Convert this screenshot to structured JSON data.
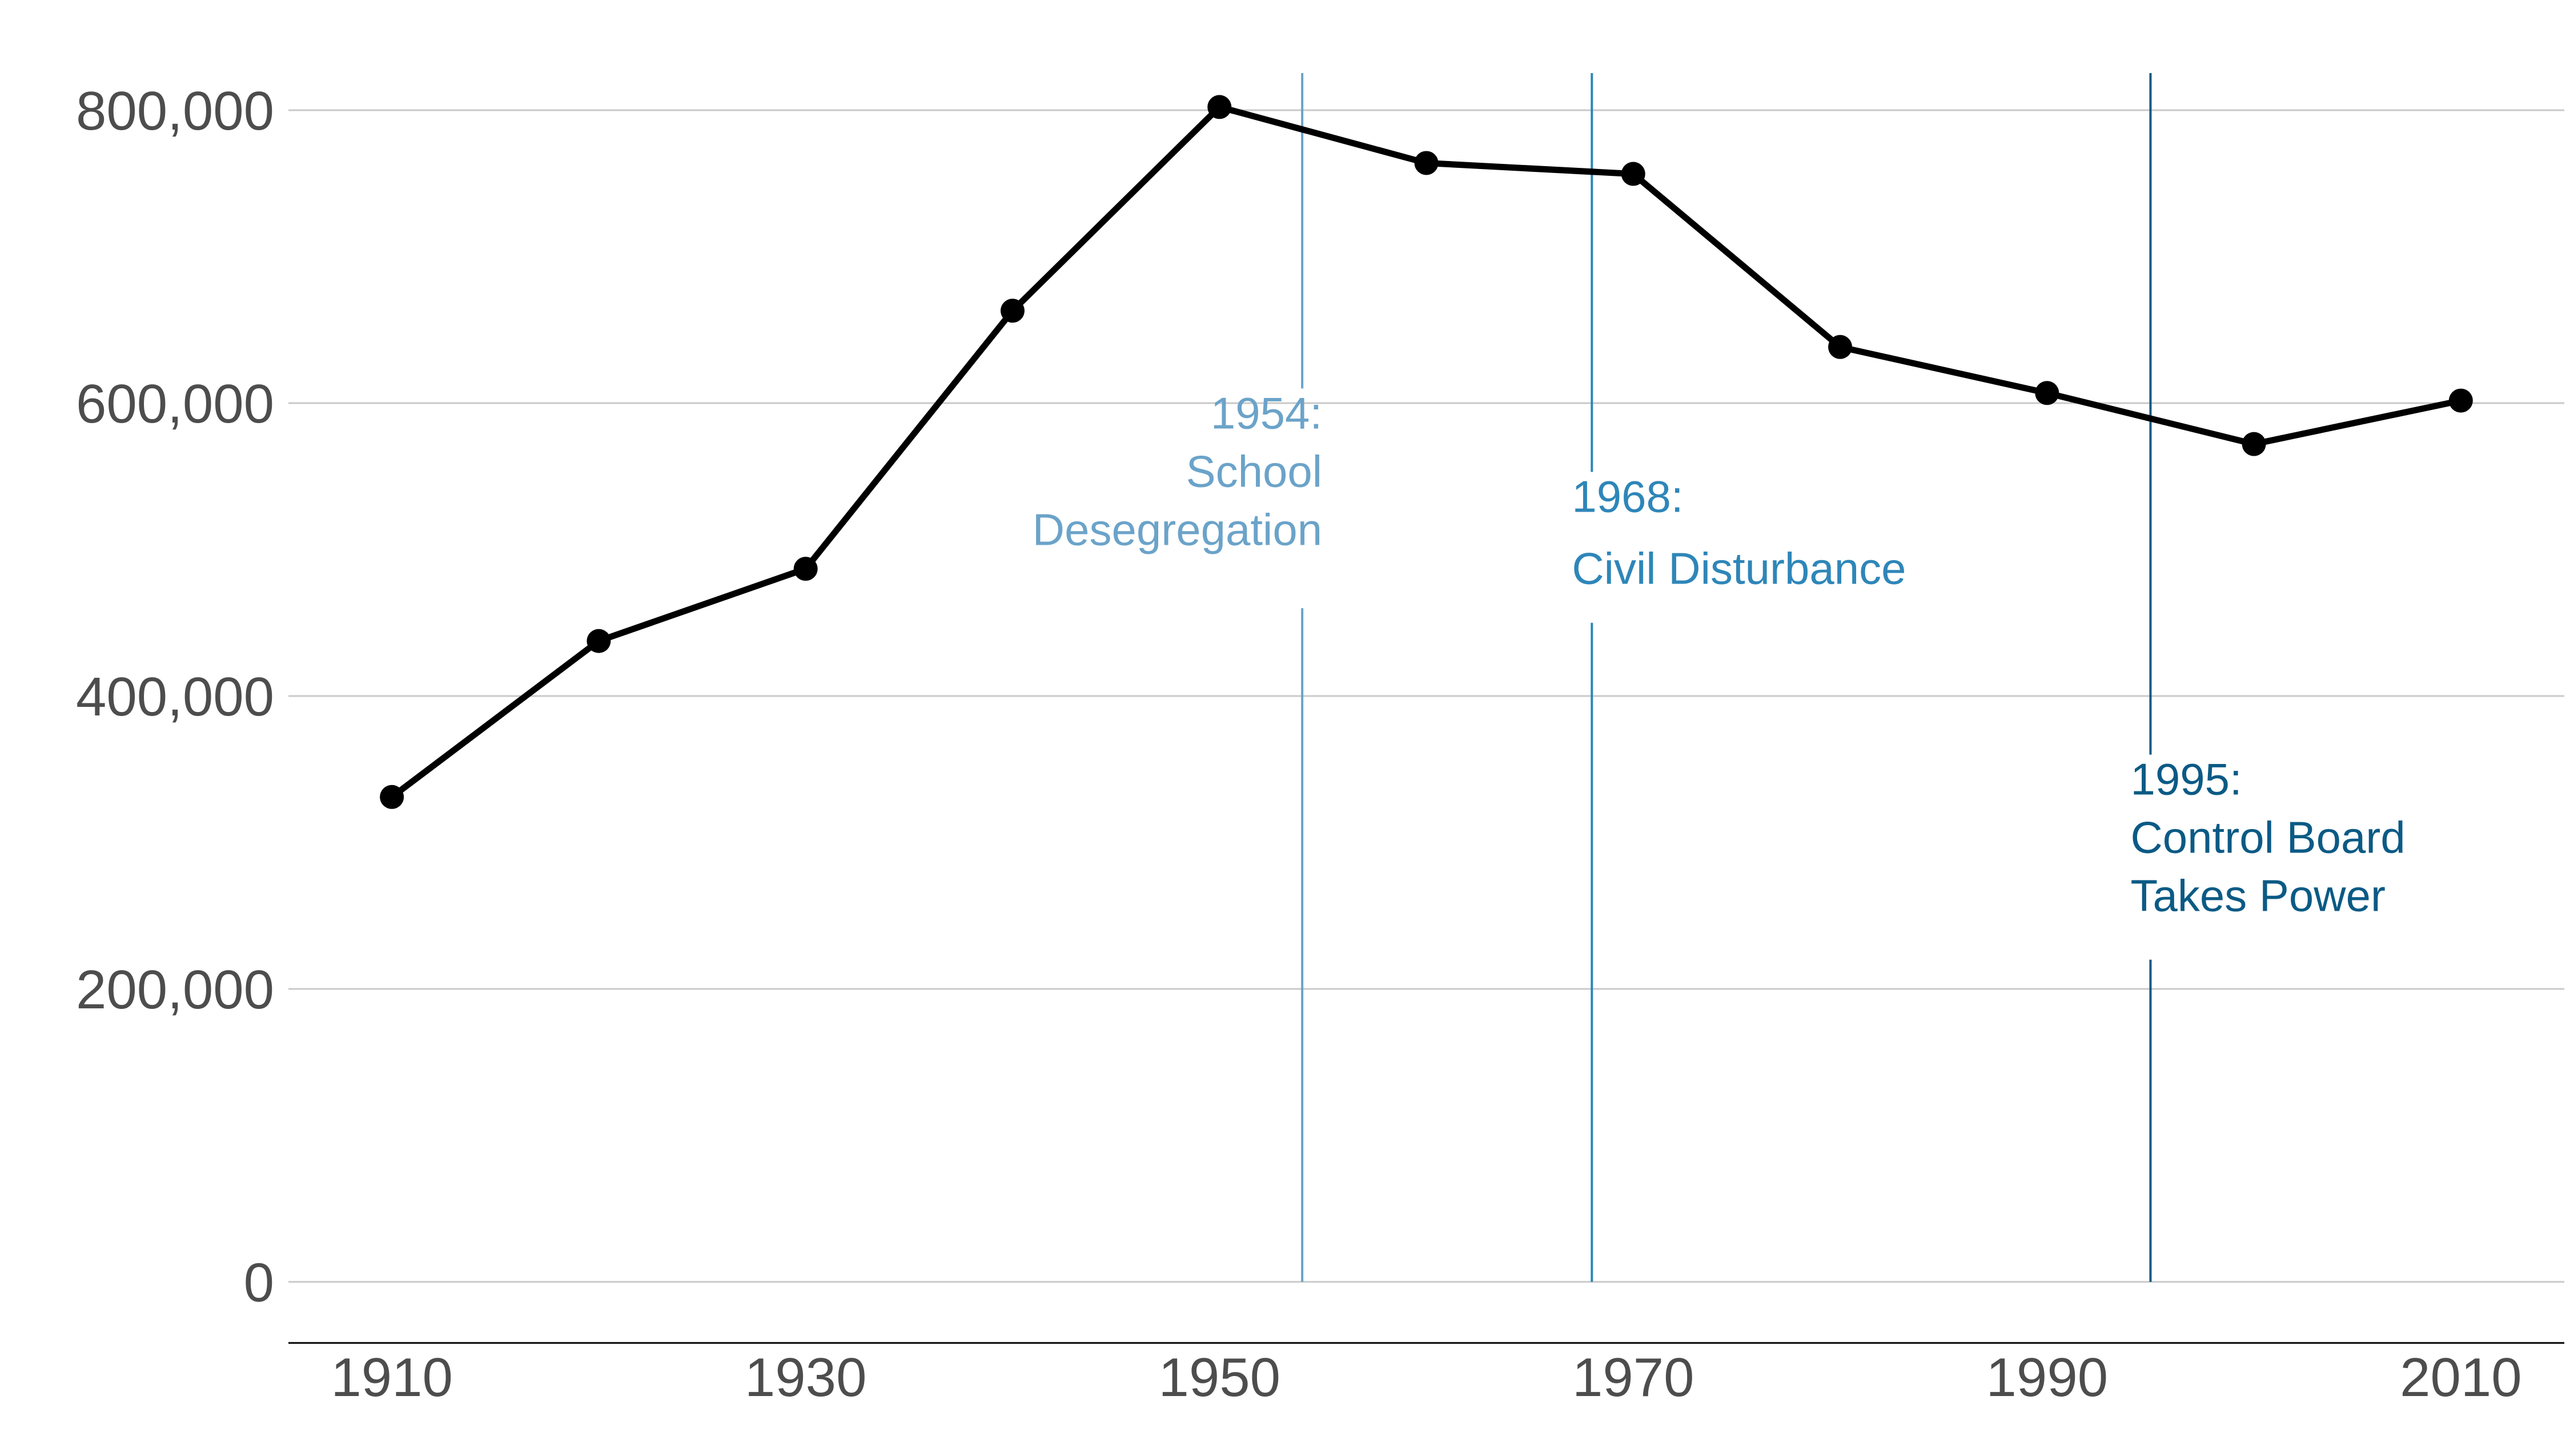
{
  "chart_data": {
    "type": "line",
    "title": "",
    "xlabel": "",
    "ylabel": "",
    "x": [
      1910,
      1920,
      1930,
      1940,
      1950,
      1960,
      1970,
      1980,
      1990,
      2000,
      2010
    ],
    "series": [
      {
        "values": [
          331069,
          437571,
          486869,
          663091,
          802178,
          763956,
          756510,
          638333,
          606900,
          572059,
          601723
        ]
      }
    ],
    "xlim": [
      1905,
      2015
    ],
    "ylim": [
      0,
      820000
    ],
    "x_ticks": [
      1910,
      1930,
      1950,
      1970,
      1990,
      2010
    ],
    "x_tick_labels": [
      "1910",
      "1930",
      "1950",
      "1970",
      "1990",
      "2010"
    ],
    "y_ticks": [
      0,
      200000,
      400000,
      600000,
      800000
    ],
    "y_tick_labels": [
      "0",
      "200,000",
      "400,000",
      "600,000",
      "800,000"
    ],
    "grid": "horizontal",
    "line_color": "#000000",
    "annotations": [
      {
        "x": 1954,
        "lines": [
          "1954:",
          "School",
          "Desegregation"
        ],
        "color": "#6ba3c9",
        "align": "right",
        "label_y_top": 610000,
        "label_y_bottom": 460000
      },
      {
        "x": 1968,
        "lines": [
          "1968:",
          "Civil Disturbance"
        ],
        "color": "#2e86b8",
        "align": "left",
        "label_y_top": 553000,
        "label_y_bottom": 450000
      },
      {
        "x": 1995,
        "lines": [
          "1995:",
          "Control Board",
          "Takes Power"
        ],
        "color": "#0b5a85",
        "align": "left",
        "label_y_top": 360000,
        "label_y_bottom": 220000
      }
    ]
  }
}
